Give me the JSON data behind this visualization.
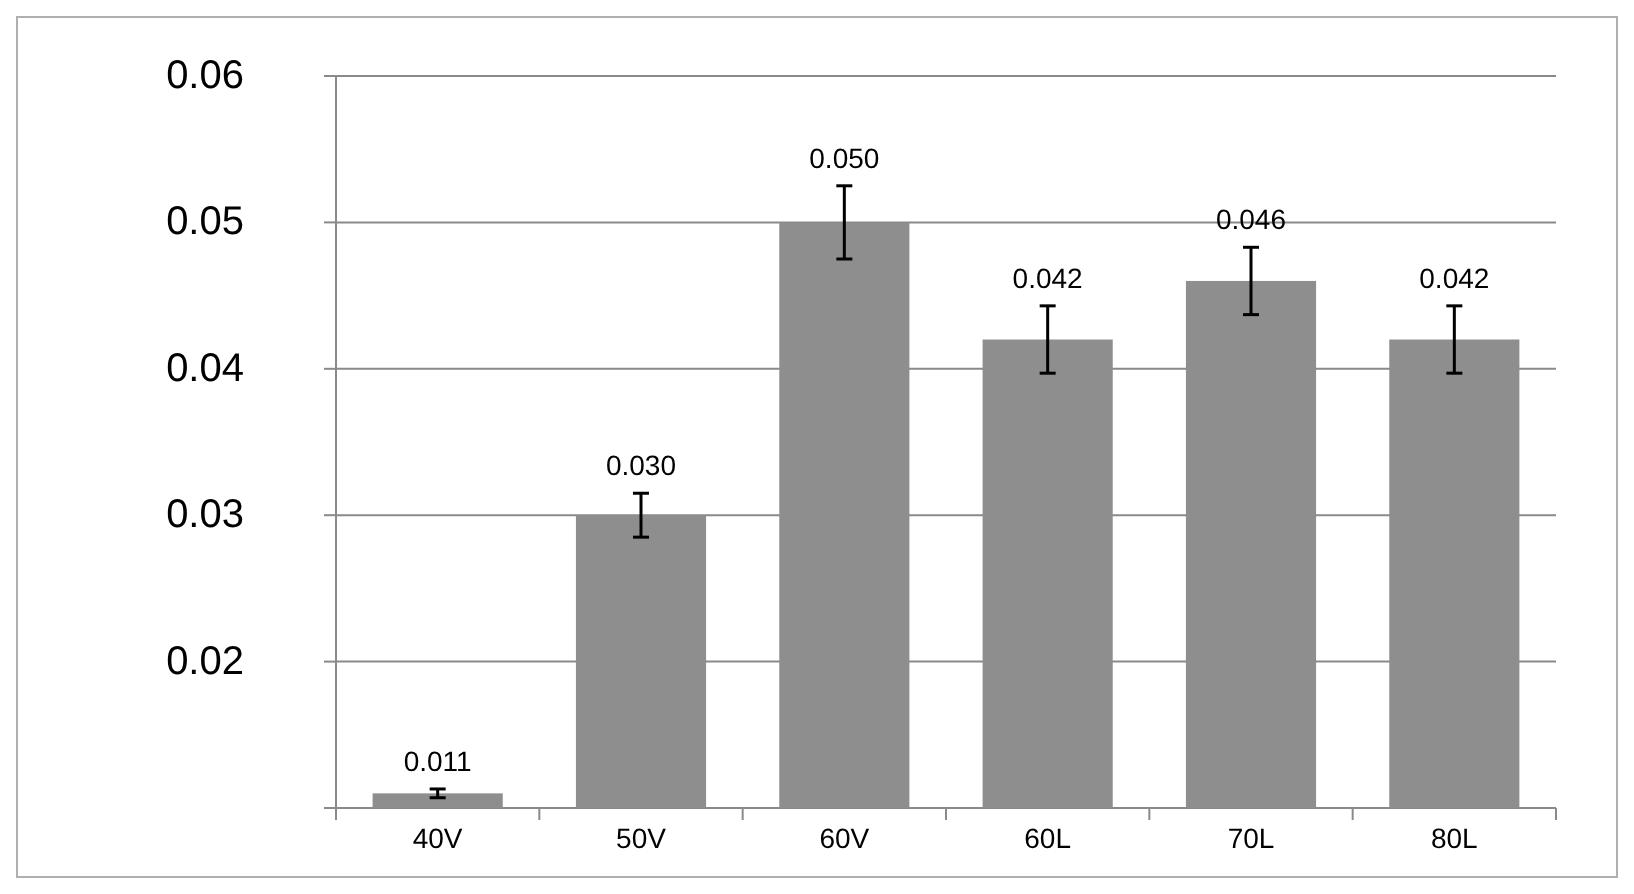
{
  "chart_data": {
    "type": "bar",
    "categories": [
      "40V",
      "50V",
      "60V",
      "60L",
      "70L",
      "80L"
    ],
    "values": [
      0.011,
      0.03,
      0.05,
      0.042,
      0.046,
      0.042
    ],
    "errors": [
      0.0003,
      0.0015,
      0.0025,
      0.0023,
      0.0023,
      0.0023
    ],
    "value_labels": [
      "0.011",
      "0.030",
      "0.050",
      "0.042",
      "0.046",
      "0.042"
    ],
    "color": "#8e8e8e",
    "grid": "y",
    "ylim": [
      0.01,
      0.06
    ],
    "yticks": [
      {
        "value": 0.01,
        "label": null
      },
      0.02,
      0.03,
      0.04,
      0.05,
      0.06
    ]
  }
}
